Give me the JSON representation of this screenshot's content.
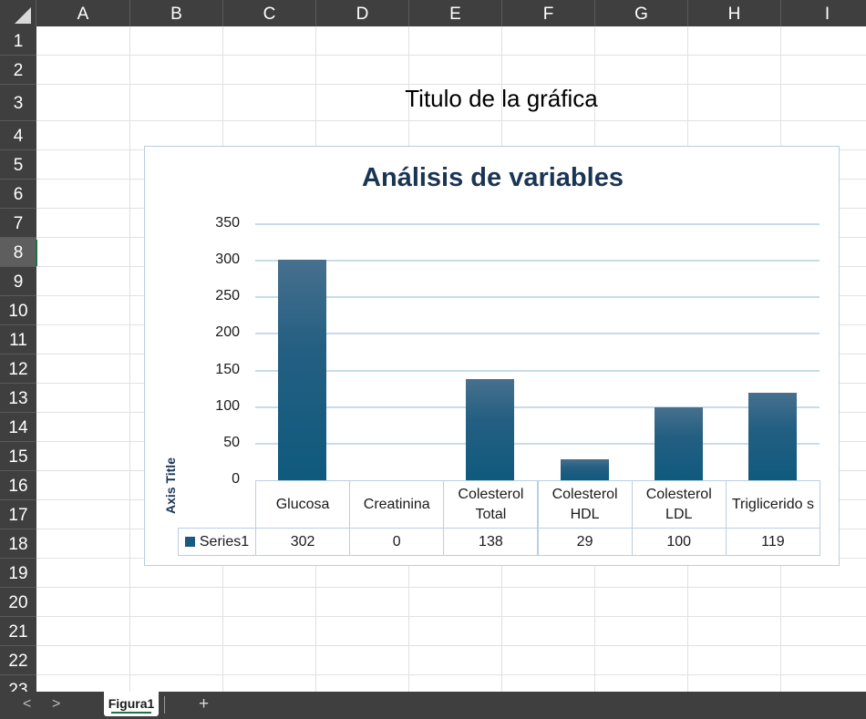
{
  "columns": [
    "A",
    "B",
    "C",
    "D",
    "E",
    "F",
    "G",
    "H",
    "I"
  ],
  "rows": [
    "1",
    "2",
    "3",
    "4",
    "5",
    "6",
    "7",
    "8",
    "9",
    "10",
    "11",
    "12",
    "13",
    "14",
    "15",
    "16",
    "17",
    "18",
    "19",
    "20",
    "21",
    "22",
    "23"
  ],
  "active_row": "8",
  "sheet_title": "Titulo de la gráfica",
  "tabs": {
    "active": "Figura1",
    "add_label": "+",
    "prev_label": "<",
    "next_label": ">"
  },
  "chart_data": {
    "type": "bar",
    "title": "Análisis de variables",
    "ylabel": "Axis Title",
    "xlabel": "",
    "ylim": [
      0,
      350
    ],
    "yticks": [
      "350",
      "300",
      "250",
      "200",
      "150",
      "100",
      "50",
      "0"
    ],
    "categories": [
      "Glucosa",
      "Creatinina",
      "Colesterol Total",
      "Colesterol HDL",
      "Colesterol LDL",
      "Triglicerido s"
    ],
    "series": [
      {
        "name": "Series1",
        "values": [
          302,
          0,
          138,
          29,
          100,
          119
        ]
      }
    ],
    "data_table": true,
    "color": "#1a5a7f"
  }
}
